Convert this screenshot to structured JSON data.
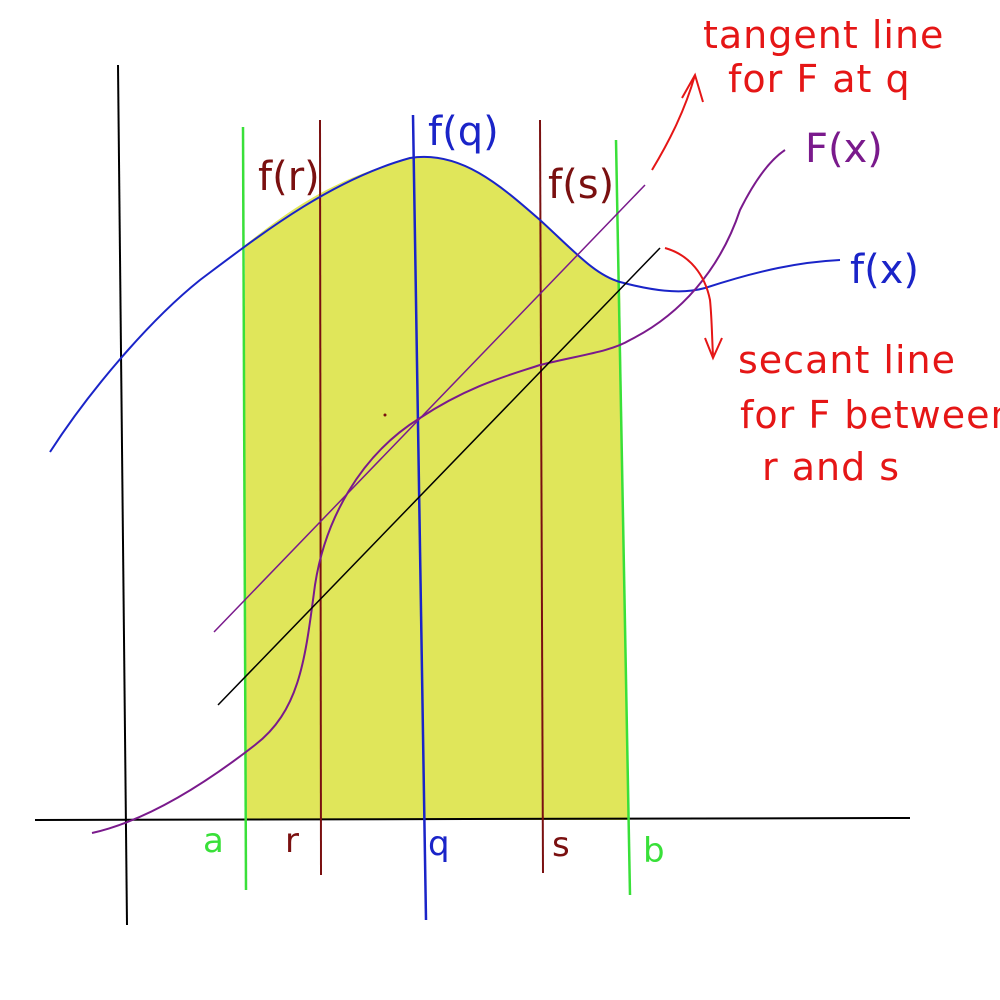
{
  "labels": {
    "f_r": "f(r)",
    "f_q": "f(q)",
    "f_s": "f(s)",
    "F_x": "F(x)",
    "f_x": "f(x)",
    "tick_a": "a",
    "tick_r": "r",
    "tick_q": "q",
    "tick_s": "s",
    "tick_b": "b"
  },
  "annotations": {
    "tangent_line1": "tangent line",
    "tangent_line2": "for F at q",
    "secant_line1": "secant line",
    "secant_line2": "for F between",
    "secant_line3": "r and s"
  },
  "colors": {
    "axes": "#000000",
    "shade": "#e0e65a",
    "f_curve": "#1a24c8",
    "F_curve": "#7a1a8c",
    "bound_lines": "#39e039",
    "r_s_lines": "#7a1010",
    "q_line": "#1a24c8",
    "annotation": "#e51616"
  }
}
